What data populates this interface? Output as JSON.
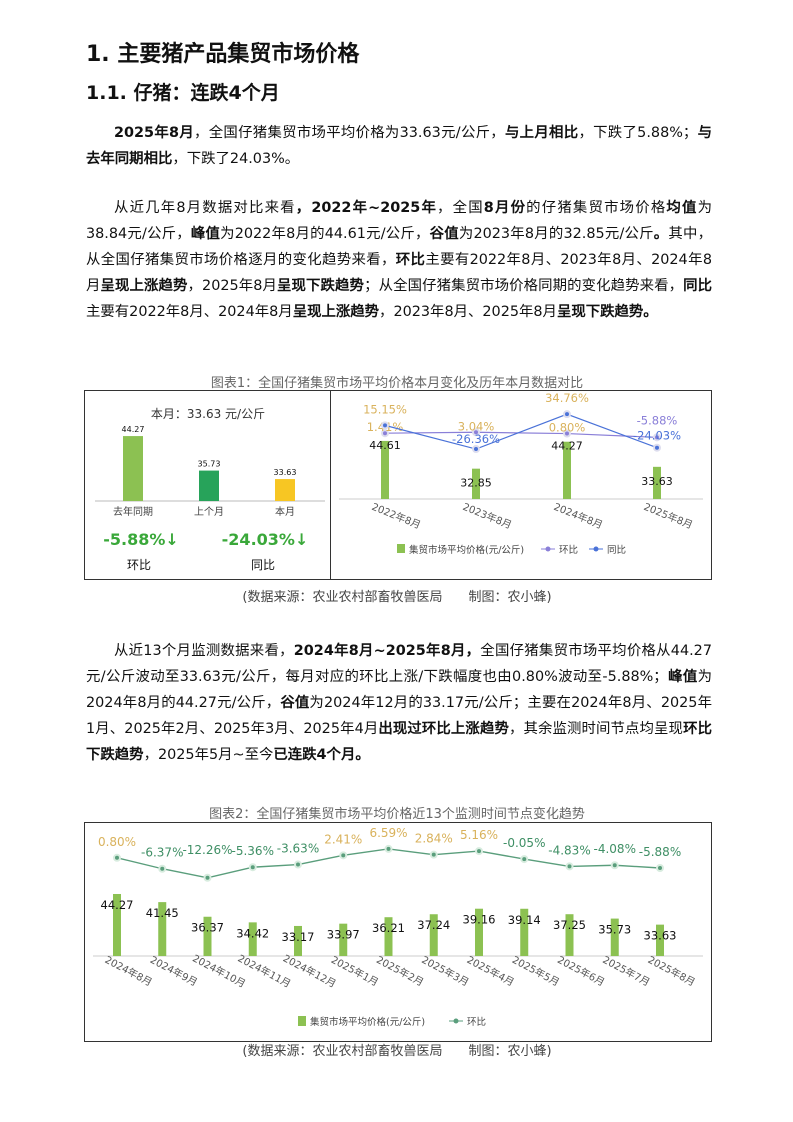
{
  "heading1": "1. 主要猪产品集贸市场价格",
  "heading2": "1.1. 仔猪：连跌4个月",
  "paragraphs": [
    [
      {
        "t": "2025年8月",
        "b": true
      },
      {
        "t": "，全国仔猪集贸市场平均价格为33.63元/公斤，"
      },
      {
        "t": "与上月相比",
        "b": true
      },
      {
        "t": "，下跌了5.88%；"
      },
      {
        "t": "与去年同期相比",
        "b": true
      },
      {
        "t": "，下跌了24.03%。"
      }
    ],
    [
      {
        "t": "从近几年8月数据对比来看"
      },
      {
        "t": "，2022年~2025年",
        "b": true
      },
      {
        "t": "，全国"
      },
      {
        "t": "8月份",
        "b": true
      },
      {
        "t": "的仔猪集贸市场价格"
      },
      {
        "t": "均值",
        "b": true
      },
      {
        "t": "为38.84元/公斤，"
      },
      {
        "t": "峰值",
        "b": true
      },
      {
        "t": "为2022年8月的44.61元/公斤，"
      },
      {
        "t": "谷值",
        "b": true
      },
      {
        "t": "为2023年8月的32.85元/公斤"
      },
      {
        "t": "。",
        "b": true
      },
      {
        "t": "其中，从全国仔猪集贸市场价格逐月的变化趋势来看，"
      },
      {
        "t": "环比",
        "b": true
      },
      {
        "t": "主要有2022年8月、2023年8月、2024年8月"
      },
      {
        "t": "呈现上涨趋势",
        "b": true
      },
      {
        "t": "，2025年8月"
      },
      {
        "t": "呈现下跌趋势",
        "b": true
      },
      {
        "t": "；从全国仔猪集贸市场价格同期的变化趋势来看，"
      },
      {
        "t": "同比",
        "b": true
      },
      {
        "t": "主要有2022年8月、2024年8月"
      },
      {
        "t": "呈现上涨趋势",
        "b": true
      },
      {
        "t": "，2023年8月、2025年8月"
      },
      {
        "t": "呈现下跌趋势。",
        "b": true
      }
    ],
    [
      {
        "t": "从近13个月监测数据来看，"
      },
      {
        "t": "2024年8月~2025年8月，",
        "b": true
      },
      {
        "t": "全国仔猪集贸市场平均价格从44.27元/公斤波动至33.63元/公斤，每月对应的环比上涨/下跌幅度也由0.80%波动至-5.88%；"
      },
      {
        "t": "峰值",
        "b": true
      },
      {
        "t": "为2024年8月的44.27元/公斤，"
      },
      {
        "t": "谷值",
        "b": true
      },
      {
        "t": "为2024年12月的33.17元/公斤；主要在2024年8月、2025年1月、2025年2月、2025年3月、2025年4月"
      },
      {
        "t": "出现过环比上涨趋势",
        "b": true
      },
      {
        "t": "，其余监测时间节点均呈现"
      },
      {
        "t": "环比下跌趋势",
        "b": true
      },
      {
        "t": "，2025年5月~至今"
      },
      {
        "t": "已连跌4个月。",
        "b": true
      }
    ]
  ],
  "source_note": "(数据来源：农业农村部畜牧兽医局　　制图：农小蜂)",
  "chart_data": [
    {
      "type": "bar",
      "title": "图表1：全国仔猪集贸市场平均价格本月变化及历年本月数据对比",
      "subtitle": "本月：33.63 元/公斤",
      "categories": [
        "去年同期",
        "上个月",
        "本月"
      ],
      "values": [
        44.27,
        35.73,
        33.63
      ],
      "bar_colors": [
        "#8cc152",
        "#27a35a",
        "#f7c623"
      ],
      "kpis": [
        {
          "value": "-5.88%↓",
          "label": "环比"
        },
        {
          "value": "-24.03%↓",
          "label": "同比"
        }
      ],
      "kpi_color": "#3aa83a"
    },
    {
      "type": "bar+line",
      "categories": [
        "2022年8月",
        "2023年8月",
        "2024年8月",
        "2025年8月"
      ],
      "series": [
        {
          "name": "集贸市场平均价格(元/公斤)",
          "kind": "bar",
          "values": [
            44.61,
            32.85,
            44.27,
            33.63
          ],
          "color": "#8cc152"
        },
        {
          "name": "环比",
          "kind": "line",
          "values": [
            1.41,
            3.04,
            0.8,
            -5.88
          ],
          "color": "#8a7fd8",
          "unit": "%"
        },
        {
          "name": "同比",
          "kind": "line",
          "values": [
            15.15,
            -26.36,
            34.76,
            -24.03
          ],
          "color": "#4a72d8",
          "unit": "%"
        }
      ],
      "positive_label_color": "#d9b25c",
      "legend": "bottom"
    },
    {
      "type": "bar+line",
      "title": "图表2：全国仔猪集贸市场平均价格近13个监测时间节点变化趋势",
      "categories": [
        "2024年8月",
        "2024年9月",
        "2024年10月",
        "2024年11月",
        "2024年12月",
        "2025年1月",
        "2025年2月",
        "2025年3月",
        "2025年4月",
        "2025年5月",
        "2025年6月",
        "2025年7月",
        "2025年8月"
      ],
      "series": [
        {
          "name": "集贸市场平均价格(元/公斤)",
          "kind": "bar",
          "values": [
            44.27,
            41.45,
            36.37,
            34.42,
            33.17,
            33.97,
            36.21,
            37.24,
            39.16,
            39.14,
            37.25,
            35.73,
            33.63
          ],
          "color": "#8cc152"
        },
        {
          "name": "环比",
          "kind": "line",
          "values": [
            0.8,
            -6.37,
            -12.26,
            -5.36,
            -3.63,
            2.41,
            6.59,
            2.84,
            5.16,
            -0.05,
            -4.83,
            -4.08,
            -5.88
          ],
          "color": "#5a9e7c",
          "unit": "%"
        }
      ],
      "positive_label_color": "#d9b25c",
      "negative_label_color": "#3f8f65",
      "legend": "bottom"
    }
  ]
}
